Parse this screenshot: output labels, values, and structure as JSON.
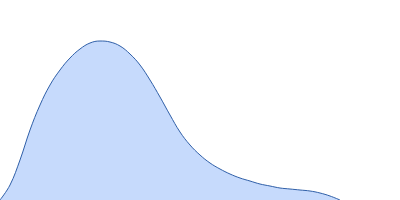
{
  "chart_data": {
    "type": "area",
    "x": [
      0,
      10,
      20,
      30,
      40,
      50,
      60,
      70,
      80,
      90,
      100,
      110,
      120,
      130,
      140,
      150,
      160,
      170,
      180,
      190,
      200,
      210,
      220,
      230,
      240,
      250,
      260,
      270,
      280,
      290,
      300,
      310,
      320,
      330,
      340
    ],
    "values": [
      0,
      15,
      40,
      70,
      95,
      115,
      130,
      142,
      151,
      157,
      159,
      158,
      154,
      146,
      135,
      120,
      103,
      85,
      68,
      55,
      45,
      37,
      31,
      26,
      22,
      19,
      16,
      14,
      12,
      11,
      10,
      9,
      7,
      4,
      0
    ],
    "color": "#c6dafc",
    "xlim": [
      0,
      400
    ],
    "ylim": [
      0,
      200
    ],
    "grid": false,
    "tick_labels": false
  }
}
